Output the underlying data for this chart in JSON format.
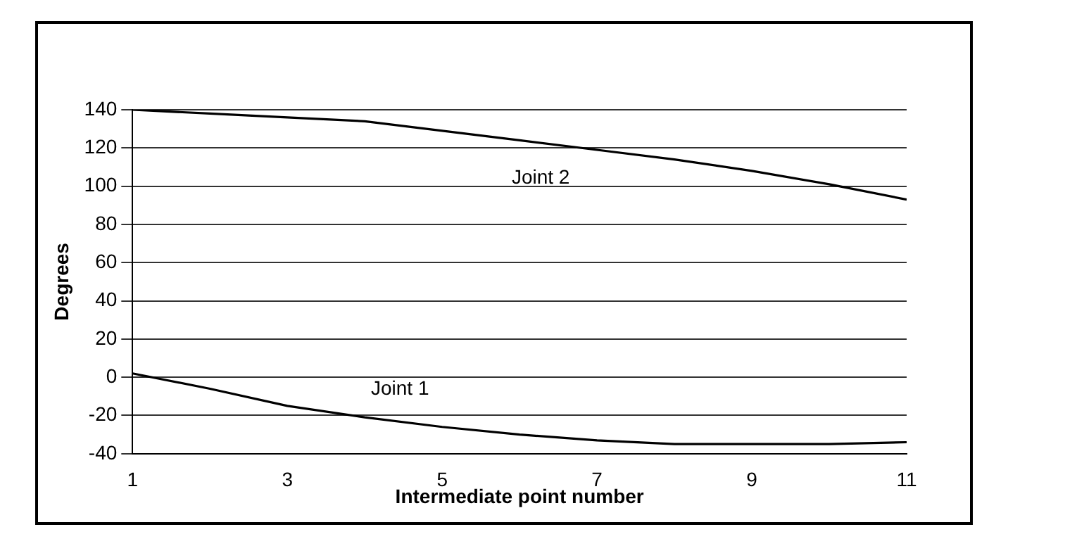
{
  "chart_data": {
    "type": "line",
    "xlabel": "Intermediate point number",
    "ylabel": "Degrees",
    "x": [
      1,
      2,
      3,
      4,
      5,
      6,
      7,
      8,
      9,
      10,
      11
    ],
    "series": [
      {
        "name": "Joint 1",
        "color": "#000000",
        "values": [
          2,
          -6,
          -15,
          -21,
          -26,
          -30,
          -33,
          -35,
          -35,
          -35,
          -34
        ]
      },
      {
        "name": "Joint 2",
        "color": "#000000",
        "values": [
          140,
          138,
          136,
          134,
          129,
          124,
          119,
          114,
          108,
          101,
          93
        ]
      }
    ],
    "xlim": [
      1,
      11
    ],
    "xticks": [
      1,
      3,
      5,
      7,
      9,
      11
    ],
    "ylim": [
      -40,
      140
    ],
    "yticks": [
      -40,
      -20,
      0,
      20,
      40,
      60,
      80,
      100,
      120,
      140
    ],
    "grid": "y",
    "marker": "none",
    "line_style": "solid"
  }
}
